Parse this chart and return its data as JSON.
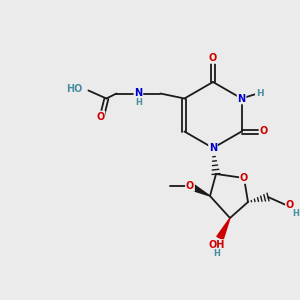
{
  "bg_color": "#ebebeb",
  "bond_color": "#1a1a1a",
  "atom_colors": {
    "O": "#cc0000",
    "N": "#0000cc",
    "H": "#4a8fa0",
    "C": "#1a1a1a"
  },
  "font_size": 7.0,
  "fig_size": [
    3.0,
    3.0
  ],
  "dpi": 100
}
